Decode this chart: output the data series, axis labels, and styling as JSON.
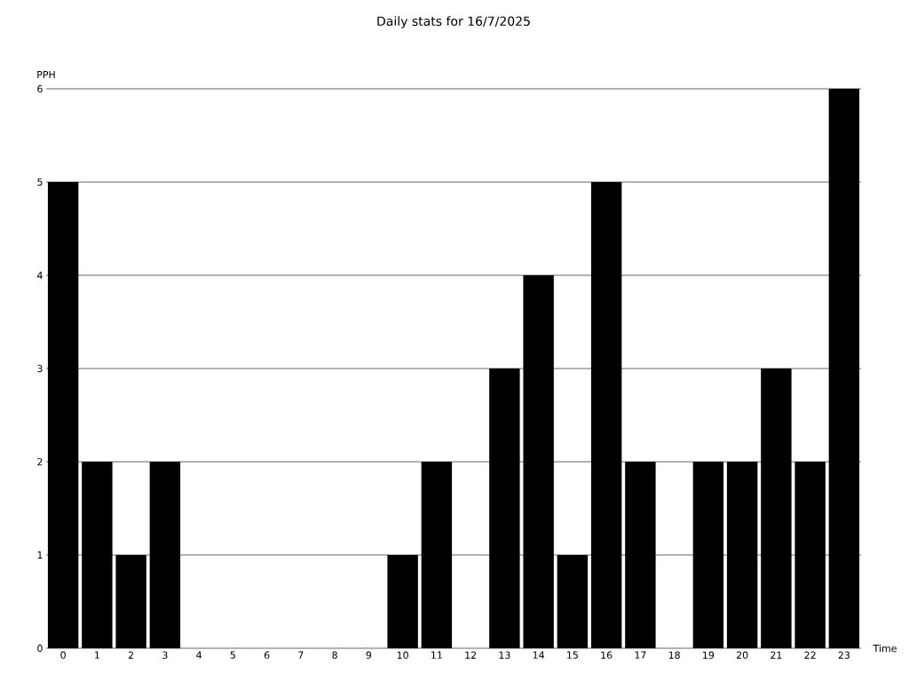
{
  "chart_data": {
    "type": "bar",
    "title": "Daily stats for 16/7/2025",
    "xlabel": "Time",
    "ylabel": "PPH",
    "categories": [
      "0",
      "1",
      "2",
      "3",
      "4",
      "5",
      "6",
      "7",
      "8",
      "9",
      "10",
      "11",
      "12",
      "13",
      "14",
      "15",
      "16",
      "17",
      "18",
      "19",
      "20",
      "21",
      "22",
      "23"
    ],
    "values": [
      5,
      2,
      1,
      2,
      0,
      0,
      0,
      0,
      0,
      0,
      1,
      2,
      0,
      3,
      4,
      1,
      5,
      2,
      0,
      2,
      2,
      3,
      2,
      6
    ],
    "color": "#000000",
    "ylim": [
      0,
      6
    ],
    "yticks": [
      0,
      1,
      2,
      3,
      4,
      5,
      6
    ],
    "grid": "y"
  }
}
